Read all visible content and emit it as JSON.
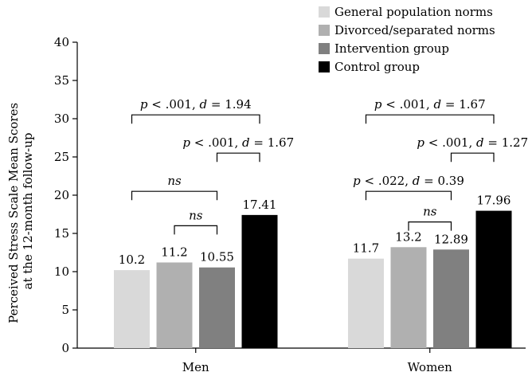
{
  "chart_data": {
    "type": "bar",
    "categories": [
      "Men",
      "Women"
    ],
    "series": [
      {
        "name": "General population norms",
        "values": [
          10.2,
          11.7
        ],
        "labels": [
          "10.2",
          "11.7"
        ],
        "color": "#d9d9d9"
      },
      {
        "name": "Divorced/separated norms",
        "values": [
          11.2,
          13.2
        ],
        "labels": [
          "11.2",
          "13.2"
        ],
        "color": "#b0b0b0"
      },
      {
        "name": "Intervention group",
        "values": [
          10.55,
          12.89
        ],
        "labels": [
          "10.55",
          "12.89"
        ],
        "color": "#808080"
      },
      {
        "name": "Control group",
        "values": [
          17.41,
          17.96
        ],
        "labels": [
          "17.41",
          "17.96"
        ],
        "color": "#000000"
      }
    ],
    "title": "",
    "xlabel": "",
    "ylabel_lines": [
      "Perceived Stress Scale Mean Scores",
      "at the 12-month follow-up"
    ],
    "ylim": [
      0,
      40
    ],
    "yticks": [
      0,
      5,
      10,
      15,
      20,
      25,
      30,
      35,
      40
    ],
    "yticklabels": [
      "0",
      "5",
      "10",
      "15",
      "20",
      "25",
      "30",
      "35",
      "40"
    ],
    "grid": false,
    "legend_position": "top-right",
    "annotations": [
      {
        "category": "Men",
        "from_series": 0,
        "to_series": 3,
        "y": 30.5,
        "segments": [
          {
            "t": "p",
            "i": true
          },
          {
            "t": " < .001, ",
            "i": false
          },
          {
            "t": "d",
            "i": true
          },
          {
            "t": " = 1.94",
            "i": false
          }
        ]
      },
      {
        "category": "Men",
        "from_series": 2,
        "to_series": 3,
        "y": 25.5,
        "segments": [
          {
            "t": "p",
            "i": true
          },
          {
            "t": " < .001, ",
            "i": false
          },
          {
            "t": "d",
            "i": true
          },
          {
            "t": " = 1.67",
            "i": false
          }
        ]
      },
      {
        "category": "Men",
        "from_series": 0,
        "to_series": 2,
        "y": 20.5,
        "segments": [
          {
            "t": "ns",
            "i": true
          }
        ]
      },
      {
        "category": "Men",
        "from_series": 1,
        "to_series": 2,
        "y": 16.0,
        "segments": [
          {
            "t": "ns",
            "i": true
          }
        ]
      },
      {
        "category": "Women",
        "from_series": 0,
        "to_series": 3,
        "y": 30.5,
        "segments": [
          {
            "t": "p",
            "i": true
          },
          {
            "t": " < .001, ",
            "i": false
          },
          {
            "t": "d",
            "i": true
          },
          {
            "t": " = 1.67",
            "i": false
          }
        ]
      },
      {
        "category": "Women",
        "from_series": 2,
        "to_series": 3,
        "y": 25.5,
        "segments": [
          {
            "t": "p",
            "i": true
          },
          {
            "t": " < .001, ",
            "i": false
          },
          {
            "t": "d",
            "i": true
          },
          {
            "t": " = 1.27",
            "i": false
          }
        ]
      },
      {
        "category": "Women",
        "from_series": 0,
        "to_series": 2,
        "y": 20.5,
        "segments": [
          {
            "t": "p",
            "i": true
          },
          {
            "t": " < .022, ",
            "i": false
          },
          {
            "t": "d",
            "i": true
          },
          {
            "t": " = 0.39",
            "i": false
          }
        ]
      },
      {
        "category": "Women",
        "from_series": 1,
        "to_series": 2,
        "y": 16.5,
        "segments": [
          {
            "t": "ns",
            "i": true
          }
        ]
      }
    ]
  }
}
